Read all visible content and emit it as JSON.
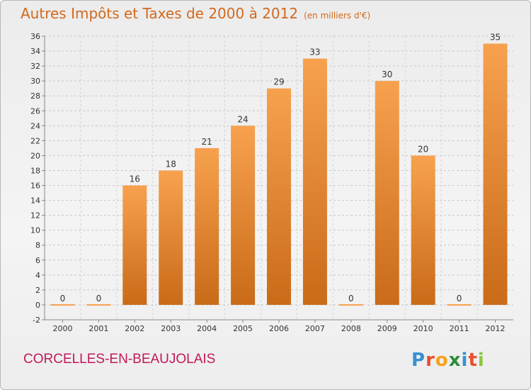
{
  "header": {
    "title": "Autres Impôts et Taxes de 2000 à 2012",
    "unit": "(en milliers d'€)"
  },
  "footer": {
    "commune": "CORCELLES-EN-BEAUJOLAIS",
    "brand": "Proxiti"
  },
  "colors": {
    "bar_top": "#f7a14f",
    "bar_bottom": "#c96b18",
    "title": "#d2691e",
    "commune": "#c2185b"
  },
  "chart_data": {
    "type": "bar",
    "categories": [
      "2000",
      "2001",
      "2002",
      "2003",
      "2004",
      "2005",
      "2006",
      "2007",
      "2008",
      "2009",
      "2010",
      "2011",
      "2012"
    ],
    "values": [
      0,
      0,
      16,
      18,
      21,
      24,
      29,
      33,
      0,
      30,
      20,
      0,
      35
    ],
    "data_labels": [
      "0",
      "0",
      "16",
      "18",
      "21",
      "24",
      "29",
      "33",
      "0",
      "30",
      "20",
      "0",
      "35"
    ],
    "title": "Autres Impôts et Taxes de 2000 à 2012",
    "ylim": [
      -2,
      36
    ],
    "yticks": [
      -2,
      0,
      2,
      4,
      6,
      8,
      10,
      12,
      14,
      16,
      18,
      20,
      22,
      24,
      26,
      28,
      30,
      32,
      34,
      36
    ],
    "grid": "horizontal dashed"
  }
}
